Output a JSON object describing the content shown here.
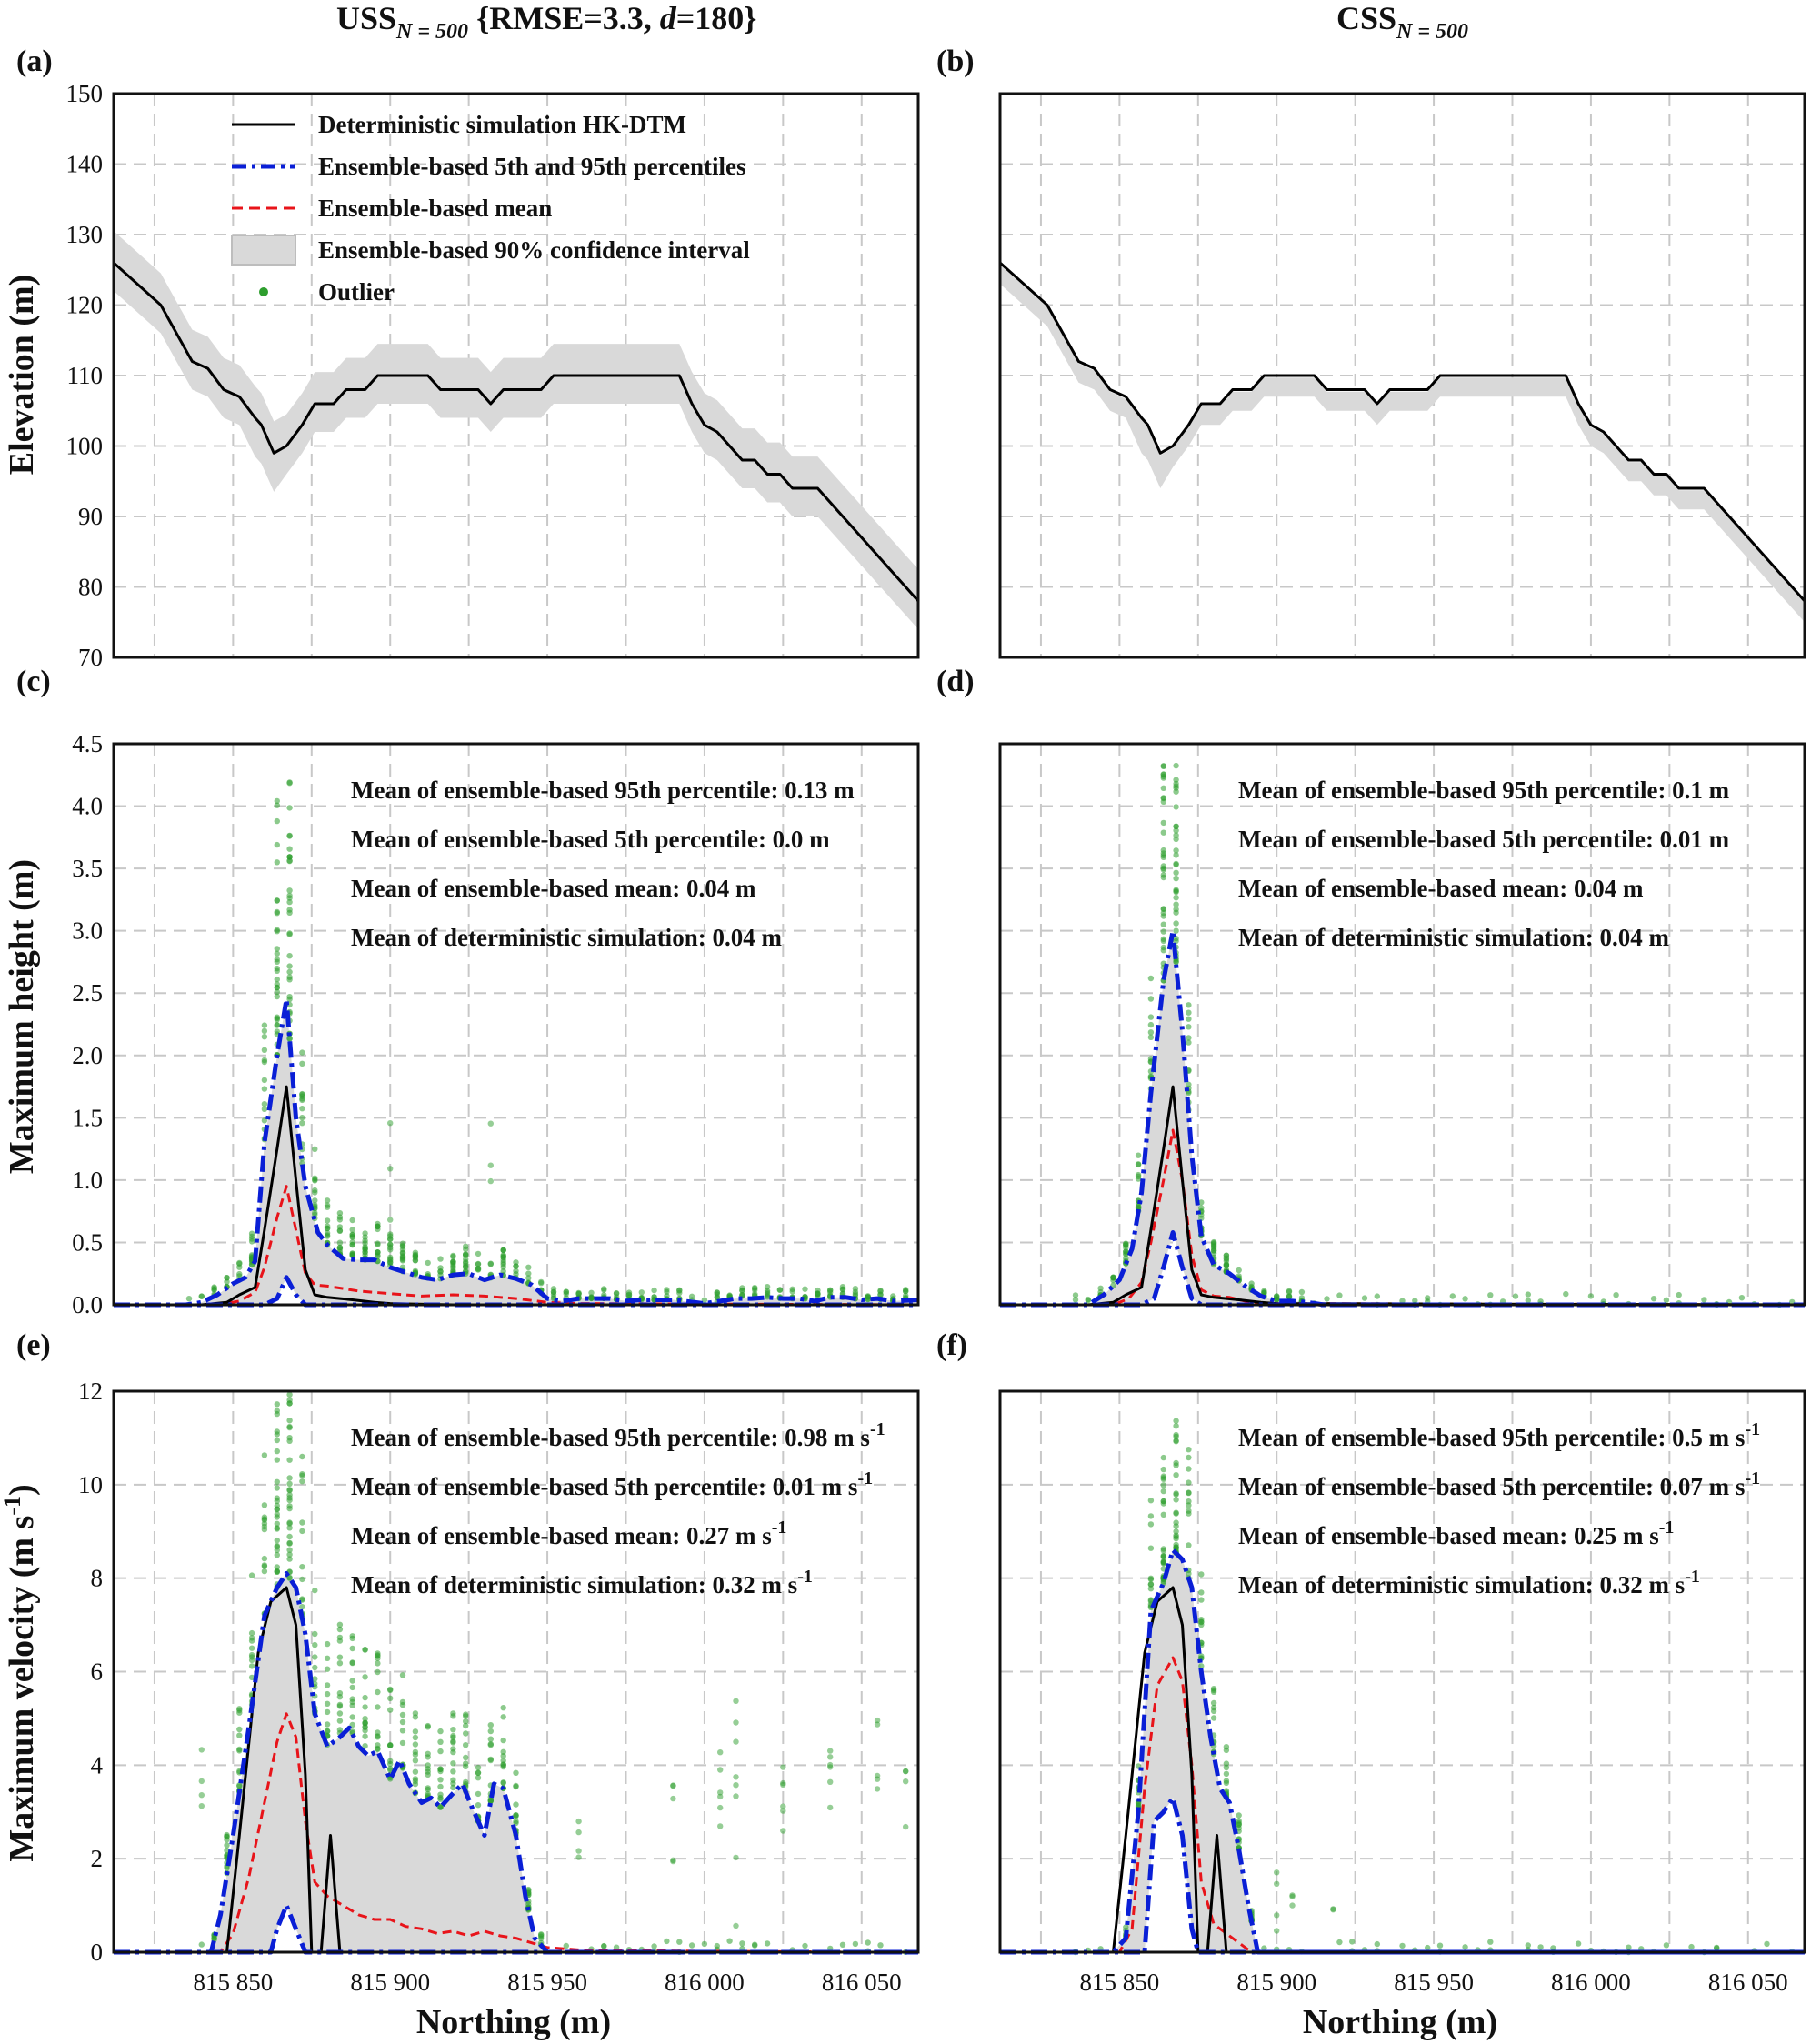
{
  "figure": {
    "left_title": "USS",
    "left_title_sub": "N = 500",
    "left_title_rest": "{RMSE=3.3, ",
    "left_title_d": "d",
    "left_title_end": "=180}",
    "right_title": "CSS",
    "right_title_sub": "N = 500"
  },
  "axes": {
    "xlabel": "Northing (m)",
    "x_ticks": [
      "815 850",
      "815 900",
      "815 950",
      "816 000",
      "816 050"
    ],
    "ylabel_elev": "Elevation (m)",
    "ylabel_height": "Maximum height (m)",
    "ylabel_velocity": "Maximum velocity (m s",
    "ylabel_velocity_sup": "-1",
    "ylabel_velocity_end": ")",
    "elev_ticks": [
      "70",
      "80",
      "90",
      "100",
      "110",
      "120",
      "130",
      "140",
      "150"
    ],
    "height_ticks": [
      "0.0",
      "0.5",
      "1.0",
      "1.5",
      "2.0",
      "2.5",
      "3.0",
      "3.5",
      "4.0",
      "4.5"
    ],
    "velocity_ticks": [
      "0",
      "2",
      "4",
      "6",
      "8",
      "10",
      "12"
    ]
  },
  "legend": {
    "det": "Deterministic simulation HK-DTM",
    "pct": "Ensemble-based 5th and 95th percentiles",
    "mean": "Ensemble-based mean",
    "ci": "Ensemble-based 90% confidence interval",
    "outlier": "Outlier"
  },
  "panels": {
    "a": {
      "label": "(a)"
    },
    "b": {
      "label": "(b)"
    },
    "c": {
      "label": "(c)",
      "ann": [
        "Mean of ensemble-based 95th percentile: 0.13 m",
        "Mean of ensemble-based 5th percentile: 0.0 m",
        "Mean of ensemble-based mean: 0.04 m",
        "Mean of deterministic simulation: 0.04 m"
      ]
    },
    "d": {
      "label": "(d)",
      "ann": [
        "Mean of ensemble-based 95th percentile: 0.1 m",
        "Mean of ensemble-based 5th percentile: 0.01 m",
        "Mean of ensemble-based mean: 0.04 m",
        "Mean of deterministic simulation: 0.04 m"
      ]
    },
    "e": {
      "label": "(e)",
      "ann": [
        "Mean of ensemble-based 95th percentile: 0.98 m s",
        "Mean of ensemble-based 5th percentile: 0.01 m s",
        "Mean of ensemble-based mean: 0.27 m s",
        "Mean of deterministic simulation: 0.32 m s"
      ],
      "ann_sup": "-1"
    },
    "f": {
      "label": "(f)",
      "ann": [
        "Mean of ensemble-based 95th percentile: 0.5 m s",
        "Mean of ensemble-based 5th percentile: 0.07 m s",
        "Mean of ensemble-based mean: 0.25 m s",
        "Mean of deterministic simulation: 0.32 m s"
      ],
      "ann_sup": "-1"
    }
  },
  "colors": {
    "det": "#000000",
    "pct": "#0a1fd6",
    "mean": "#e8141a",
    "ci": "#d9d9d9",
    "outlier": "#2e9e2e",
    "grid": "#c8c8c8"
  },
  "chart_data": [
    {
      "id": "a",
      "type": "line",
      "title": "USS N=500 {RMSE=3.3, d=180}",
      "xlabel": "",
      "ylabel": "Elevation (m)",
      "xlim": [
        815812,
        816068
      ],
      "ylim": [
        70,
        150
      ],
      "series": [
        {
          "name": "Deterministic simulation HK-DTM",
          "x": [
            815812,
            815827,
            815832,
            815837,
            815842,
            815847,
            815852,
            815857,
            815859,
            815863,
            815867,
            815872,
            815876,
            815879,
            815882,
            815886,
            815889,
            815892,
            815896,
            815900,
            815904,
            815908,
            815912,
            815916,
            815920,
            815924,
            815928,
            815932,
            815936,
            815940,
            815944,
            815948,
            815952,
            815956,
            815960,
            815964,
            815968,
            815972,
            815976,
            815980,
            815984,
            815988,
            815992,
            815996,
            816000,
            816004,
            816008,
            816012,
            816016,
            816020,
            816024,
            816028,
            816032,
            816036,
            816040,
            816044,
            816048,
            816052,
            816056,
            816060,
            816064,
            816068
          ],
          "y": [
            126,
            120,
            116,
            112,
            111,
            108,
            107,
            104,
            103,
            99,
            100,
            103,
            106,
            106,
            106,
            108,
            108,
            108,
            110,
            110,
            110,
            110,
            110,
            108,
            108,
            108,
            108,
            106,
            108,
            108,
            108,
            108,
            110,
            110,
            110,
            110,
            110,
            110,
            110,
            110,
            110,
            110,
            110,
            106,
            103,
            102,
            100,
            98,
            98,
            96,
            96,
            94,
            94,
            94,
            92,
            90,
            88,
            86,
            84,
            82,
            80,
            78
          ]
        },
        {
          "name": "Ensemble-based 90% CI upper",
          "values_desc": "approx det + 4 m"
        },
        {
          "name": "Ensemble-based 90% CI lower",
          "values_desc": "approx det - 4 m"
        }
      ]
    },
    {
      "id": "b",
      "type": "line",
      "title": "CSS N=500",
      "xlim": [
        815812,
        816068
      ],
      "ylim": [
        70,
        150
      ],
      "series": [
        {
          "name": "Deterministic simulation HK-DTM",
          "values_desc": "same as panel (a)"
        },
        {
          "name": "Ensemble-based 90% CI",
          "values_desc": "approx det - 3 m to det - 0.5 m"
        }
      ]
    },
    {
      "id": "c",
      "type": "line",
      "ylabel": "Maximum height (m)",
      "xlim": [
        815812,
        816068
      ],
      "ylim": [
        0,
        4.5
      ],
      "series": [
        {
          "name": "Deterministic simulation HK-DTM",
          "x": [
            815812,
            815840,
            815848,
            815852,
            815857,
            815860,
            815864,
            815867,
            815870,
            815873,
            815876,
            815880,
            815884,
            815888,
            815895,
            815900,
            815920,
            816068
          ],
          "y": [
            0,
            0,
            0.02,
            0.08,
            0.14,
            0.6,
            1.25,
            1.75,
            1.0,
            0.28,
            0.08,
            0.06,
            0.05,
            0.04,
            0.02,
            0.01,
            0,
            0
          ]
        },
        {
          "name": "Ensemble-based 95th percentile",
          "x": [
            815812,
            815835,
            815840,
            815845,
            815850,
            815854,
            815857,
            815860,
            815864,
            815867,
            815870,
            815873,
            815877,
            815880,
            815885,
            815890,
            815895,
            815900,
            815905,
            815910,
            815915,
            815920,
            815925,
            815930,
            815935,
            815940,
            815945,
            815950,
            815955,
            815960,
            815970,
            815975,
            815980,
            815990,
            816000,
            816005,
            816010,
            816015,
            816020,
            816025,
            816030,
            816035,
            816040,
            816045,
            816050,
            816055,
            816060,
            816068
          ],
          "y": [
            0,
            0,
            0.02,
            0.08,
            0.17,
            0.22,
            0.35,
            1.3,
            2.0,
            2.45,
            1.5,
            0.95,
            0.58,
            0.48,
            0.37,
            0.36,
            0.36,
            0.3,
            0.26,
            0.22,
            0.2,
            0.24,
            0.25,
            0.2,
            0.24,
            0.21,
            0.16,
            0.05,
            0.03,
            0.05,
            0.05,
            0.03,
            0.04,
            0.04,
            0.01,
            0.03,
            0.05,
            0.05,
            0.06,
            0.05,
            0.05,
            0.03,
            0.06,
            0.06,
            0.04,
            0.05,
            0.03,
            0.04
          ]
        },
        {
          "name": "Ensemble-based 5th percentile",
          "x": [
            815812,
            815860,
            815864,
            815867,
            815870,
            815873,
            816068
          ],
          "y": [
            0,
            0,
            0.05,
            0.22,
            0.08,
            0,
            0
          ]
        },
        {
          "name": "Ensemble-based mean",
          "x": [
            815812,
            815845,
            815852,
            815857,
            815860,
            815864,
            815867,
            815870,
            815873,
            815876,
            815880,
            815890,
            815900,
            815910,
            815920,
            815930,
            815940,
            815950,
            815960,
            816068
          ],
          "y": [
            0,
            0,
            0.03,
            0.1,
            0.3,
            0.7,
            0.95,
            0.6,
            0.25,
            0.16,
            0.15,
            0.11,
            0.09,
            0.07,
            0.08,
            0.07,
            0.05,
            0.02,
            0.01,
            0
          ]
        }
      ]
    },
    {
      "id": "d",
      "type": "line",
      "ylabel": "Maximum height (m)",
      "xlim": [
        815812,
        816068
      ],
      "ylim": [
        0,
        4.5
      ],
      "series": [
        {
          "name": "Deterministic simulation HK-DTM",
          "x": [
            815812,
            815840,
            815848,
            815852,
            815857,
            815860,
            815864,
            815867,
            815870,
            815873,
            815876,
            815880,
            815884,
            815888,
            815895,
            815900,
            816068
          ],
          "y": [
            0,
            0,
            0.02,
            0.08,
            0.14,
            0.6,
            1.25,
            1.75,
            1.0,
            0.28,
            0.08,
            0.06,
            0.05,
            0.04,
            0.02,
            0.01,
            0
          ]
        },
        {
          "name": "Ensemble-based 95th percentile",
          "x": [
            815812,
            815840,
            815845,
            815850,
            815854,
            815857,
            815860,
            815864,
            815867,
            815870,
            815873,
            815876,
            815880,
            815885,
            815890,
            815895,
            815900,
            815905,
            815910,
            815915,
            816068
          ],
          "y": [
            0,
            0,
            0.08,
            0.2,
            0.45,
            0.9,
            1.7,
            2.6,
            3.0,
            2.2,
            1.2,
            0.55,
            0.32,
            0.25,
            0.15,
            0.07,
            0.03,
            0.03,
            0.02,
            0,
            0
          ]
        },
        {
          "name": "Ensemble-based 5th percentile",
          "x": [
            815812,
            815857,
            815861,
            815864,
            815867,
            815870,
            815873,
            815876,
            816068
          ],
          "y": [
            0,
            0,
            0.05,
            0.3,
            0.58,
            0.3,
            0.05,
            0,
            0
          ]
        },
        {
          "name": "Ensemble-based mean",
          "x": [
            815812,
            815848,
            815853,
            815857,
            815860,
            815864,
            815867,
            815870,
            815873,
            815876,
            815880,
            815885,
            815890,
            815895,
            816068
          ],
          "y": [
            0,
            0,
            0.05,
            0.18,
            0.5,
            1.0,
            1.4,
            1.0,
            0.4,
            0.12,
            0.07,
            0.06,
            0.03,
            0.01,
            0
          ]
        }
      ]
    },
    {
      "id": "e",
      "type": "line",
      "ylabel": "Maximum velocity (m s-1)",
      "xlim": [
        815812,
        816068
      ],
      "ylim": [
        0,
        12
      ],
      "series": [
        {
          "name": "Deterministic simulation HK-DTM",
          "x": [
            815812,
            815848,
            815852,
            815858,
            815862,
            815867,
            815870,
            815873,
            815875,
            815878,
            815881,
            815884,
            815886,
            816068
          ],
          "y": [
            0,
            0,
            2.5,
            6.4,
            7.5,
            7.8,
            7.0,
            3.8,
            0,
            0,
            2.5,
            0,
            0,
            0
          ]
        },
        {
          "name": "Ensemble-based 95th percentile",
          "x": [
            815812,
            815843,
            815846,
            815850,
            815855,
            815860,
            815864,
            815867,
            815870,
            815873,
            815876,
            815880,
            815884,
            815887,
            815890,
            815893,
            815896,
            815900,
            815903,
            815906,
            815910,
            815913,
            815916,
            815920,
            815923,
            815926,
            815930,
            815933,
            815936,
            815940,
            815943,
            815946,
            815950,
            816068
          ],
          "y": [
            0,
            0,
            0.8,
            2.5,
            4.8,
            7.2,
            7.8,
            8.1,
            7.8,
            6.8,
            5.1,
            4.4,
            4.6,
            4.8,
            4.4,
            4.2,
            4.3,
            3.7,
            4.1,
            3.6,
            3.2,
            3.3,
            3.1,
            3.4,
            3.6,
            3.1,
            2.5,
            3.6,
            3.5,
            2.5,
            1.2,
            0.3,
            0,
            0
          ]
        },
        {
          "name": "Ensemble-based 5th percentile",
          "x": [
            815812,
            815862,
            815864,
            815867,
            815870,
            815873,
            816068
          ],
          "y": [
            0,
            0,
            0.5,
            1.0,
            0.5,
            0,
            0
          ]
        },
        {
          "name": "Ensemble-based mean",
          "x": [
            815812,
            815846,
            815850,
            815855,
            815860,
            815864,
            815867,
            815870,
            815873,
            815876,
            815880,
            815885,
            815890,
            815895,
            815900,
            815905,
            815910,
            815915,
            815920,
            815925,
            815930,
            815935,
            815940,
            815945,
            815950,
            815960,
            816000,
            816068
          ],
          "y": [
            0,
            0,
            0.4,
            1.6,
            3.2,
            4.5,
            5.1,
            4.6,
            2.8,
            1.5,
            1.2,
            1.0,
            0.8,
            0.7,
            0.7,
            0.55,
            0.5,
            0.4,
            0.45,
            0.35,
            0.45,
            0.35,
            0.3,
            0.2,
            0.1,
            0.05,
            0.02,
            0
          ]
        }
      ]
    },
    {
      "id": "f",
      "type": "line",
      "ylabel": "Maximum velocity (m s-1)",
      "xlim": [
        815812,
        816068
      ],
      "ylim": [
        0,
        12
      ],
      "series": [
        {
          "name": "Deterministic simulation HK-DTM",
          "x": [
            815812,
            815848,
            815852,
            815858,
            815862,
            815867,
            815870,
            815873,
            815875,
            815878,
            815881,
            815884,
            815886,
            816068
          ],
          "y": [
            0,
            0,
            2.5,
            6.4,
            7.5,
            7.8,
            7.0,
            3.8,
            0,
            0,
            2.5,
            0,
            0,
            0
          ]
        },
        {
          "name": "Ensemble-based 95th percentile",
          "x": [
            815812,
            815848,
            815852,
            815856,
            815860,
            815864,
            815867,
            815870,
            815873,
            815876,
            815879,
            815882,
            815885,
            815888,
            815891,
            815894,
            816068
          ],
          "y": [
            0,
            0,
            0.3,
            3.0,
            7.3,
            7.9,
            8.6,
            8.4,
            7.8,
            6.0,
            4.6,
            3.5,
            3.2,
            2.2,
            1.0,
            0,
            0
          ]
        },
        {
          "name": "Ensemble-based 5th percentile",
          "x": [
            815812,
            815858,
            815861,
            815864,
            815867,
            815870,
            815873,
            815875,
            816068
          ],
          "y": [
            0,
            0,
            2.8,
            3.0,
            3.3,
            2.5,
            0.5,
            0,
            0
          ]
        },
        {
          "name": "Ensemble-based mean",
          "x": [
            815812,
            815850,
            815854,
            815858,
            815862,
            815867,
            815870,
            815873,
            815876,
            815880,
            815884,
            815888,
            815892,
            816068
          ],
          "y": [
            0,
            0,
            0.5,
            3.5,
            5.7,
            6.3,
            5.8,
            4.0,
            1.5,
            0.6,
            0.4,
            0.2,
            0,
            0
          ]
        }
      ]
    }
  ]
}
